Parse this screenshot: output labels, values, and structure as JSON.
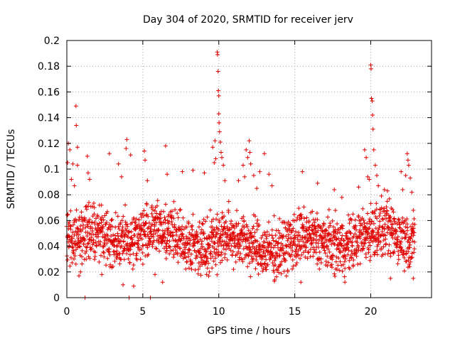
{
  "chart_data": {
    "type": "scatter",
    "title": "Day 304 of 2020, SRMTID for receiver jerv",
    "xlabel": "GPS time / hours",
    "ylabel": "SRMTID / TECUs",
    "xlim": [
      0,
      24
    ],
    "ylim": [
      0,
      0.2
    ],
    "xticks": [
      "0",
      "5",
      "10",
      "15",
      "20"
    ],
    "yticks": [
      "0",
      "0.02",
      "0.04",
      "0.06",
      "0.08",
      "0.1",
      "0.12",
      "0.14",
      "0.16",
      "0.18",
      "0.2"
    ],
    "grid": true,
    "marker": "+",
    "color": "#e00000",
    "background_cloud": {
      "x_range": [
        0,
        22.9
      ],
      "typical_range": [
        0.02,
        0.07
      ],
      "x_step_hours": 0.012
    },
    "points": [
      {
        "x": 0.05,
        "y": 0.105
      },
      {
        "x": 0.1,
        "y": 0.12
      },
      {
        "x": 0.2,
        "y": 0.115
      },
      {
        "x": 0.3,
        "y": 0.092
      },
      {
        "x": 0.4,
        "y": 0.104
      },
      {
        "x": 0.5,
        "y": 0.087
      },
      {
        "x": 0.6,
        "y": 0.149
      },
      {
        "x": 0.62,
        "y": 0.134
      },
      {
        "x": 0.7,
        "y": 0.117
      },
      {
        "x": 0.7,
        "y": 0.103
      },
      {
        "x": 0.8,
        "y": 0.017
      },
      {
        "x": 0.9,
        "y": 0.02
      },
      {
        "x": 1.35,
        "y": 0.11
      },
      {
        "x": 1.4,
        "y": 0.097
      },
      {
        "x": 1.5,
        "y": 0.092
      },
      {
        "x": 2.3,
        "y": 0.018
      },
      {
        "x": 2.8,
        "y": 0.112
      },
      {
        "x": 3.4,
        "y": 0.104
      },
      {
        "x": 3.6,
        "y": 0.094
      },
      {
        "x": 3.7,
        "y": 0.01
      },
      {
        "x": 3.95,
        "y": 0.123
      },
      {
        "x": 3.9,
        "y": 0.116
      },
      {
        "x": 4.2,
        "y": 0.111
      },
      {
        "x": 4.4,
        "y": 0.009
      },
      {
        "x": 5.1,
        "y": 0.114
      },
      {
        "x": 5.15,
        "y": 0.107
      },
      {
        "x": 5.3,
        "y": 0.091
      },
      {
        "x": 5.8,
        "y": 0.018
      },
      {
        "x": 6.3,
        "y": 0.012
      },
      {
        "x": 6.5,
        "y": 0.118
      },
      {
        "x": 6.6,
        "y": 0.096
      },
      {
        "x": 7.6,
        "y": 0.098
      },
      {
        "x": 8.3,
        "y": 0.099
      },
      {
        "x": 9.05,
        "y": 0.097
      },
      {
        "x": 9.2,
        "y": 0.018
      },
      {
        "x": 9.6,
        "y": 0.117
      },
      {
        "x": 9.7,
        "y": 0.105
      },
      {
        "x": 9.75,
        "y": 0.122
      },
      {
        "x": 9.8,
        "y": 0.108
      },
      {
        "x": 9.9,
        "y": 0.191
      },
      {
        "x": 9.92,
        "y": 0.189
      },
      {
        "x": 9.95,
        "y": 0.176
      },
      {
        "x": 9.97,
        "y": 0.161
      },
      {
        "x": 10.0,
        "y": 0.157
      },
      {
        "x": 10.0,
        "y": 0.143
      },
      {
        "x": 10.02,
        "y": 0.136
      },
      {
        "x": 10.05,
        "y": 0.129
      },
      {
        "x": 10.1,
        "y": 0.121
      },
      {
        "x": 10.15,
        "y": 0.113
      },
      {
        "x": 10.2,
        "y": 0.109
      },
      {
        "x": 10.3,
        "y": 0.103
      },
      {
        "x": 10.4,
        "y": 0.091
      },
      {
        "x": 11.3,
        "y": 0.091
      },
      {
        "x": 11.6,
        "y": 0.103
      },
      {
        "x": 11.7,
        "y": 0.094
      },
      {
        "x": 11.8,
        "y": 0.115
      },
      {
        "x": 11.9,
        "y": 0.109
      },
      {
        "x": 12.0,
        "y": 0.122
      },
      {
        "x": 12.05,
        "y": 0.113
      },
      {
        "x": 12.1,
        "y": 0.104
      },
      {
        "x": 12.3,
        "y": 0.095
      },
      {
        "x": 12.5,
        "y": 0.085
      },
      {
        "x": 12.7,
        "y": 0.098
      },
      {
        "x": 13.0,
        "y": 0.112
      },
      {
        "x": 13.3,
        "y": 0.096
      },
      {
        "x": 13.5,
        "y": 0.087
      },
      {
        "x": 15.5,
        "y": 0.098
      },
      {
        "x": 15.4,
        "y": 0.012
      },
      {
        "x": 16.5,
        "y": 0.089
      },
      {
        "x": 17.6,
        "y": 0.084
      },
      {
        "x": 18.1,
        "y": 0.078
      },
      {
        "x": 18.3,
        "y": 0.012
      },
      {
        "x": 19.2,
        "y": 0.086
      },
      {
        "x": 19.6,
        "y": 0.115
      },
      {
        "x": 19.7,
        "y": 0.109
      },
      {
        "x": 19.8,
        "y": 0.094
      },
      {
        "x": 19.9,
        "y": 0.092
      },
      {
        "x": 20.0,
        "y": 0.181
      },
      {
        "x": 20.02,
        "y": 0.178
      },
      {
        "x": 20.05,
        "y": 0.155
      },
      {
        "x": 20.1,
        "y": 0.153
      },
      {
        "x": 20.12,
        "y": 0.142
      },
      {
        "x": 20.15,
        "y": 0.131
      },
      {
        "x": 20.2,
        "y": 0.115
      },
      {
        "x": 20.3,
        "y": 0.103
      },
      {
        "x": 20.4,
        "y": 0.095
      },
      {
        "x": 20.5,
        "y": 0.087
      },
      {
        "x": 20.9,
        "y": 0.084
      },
      {
        "x": 21.1,
        "y": 0.083
      },
      {
        "x": 21.3,
        "y": 0.015
      },
      {
        "x": 22.0,
        "y": 0.098
      },
      {
        "x": 22.1,
        "y": 0.084
      },
      {
        "x": 22.3,
        "y": 0.095
      },
      {
        "x": 22.4,
        "y": 0.112
      },
      {
        "x": 22.45,
        "y": 0.107
      },
      {
        "x": 22.5,
        "y": 0.103
      },
      {
        "x": 22.6,
        "y": 0.093
      },
      {
        "x": 22.7,
        "y": 0.082
      },
      {
        "x": 22.8,
        "y": 0.015
      },
      {
        "x": 1.2,
        "y": 0.0
      },
      {
        "x": 4.1,
        "y": 0.0
      },
      {
        "x": 5.5,
        "y": 0.0
      }
    ]
  }
}
